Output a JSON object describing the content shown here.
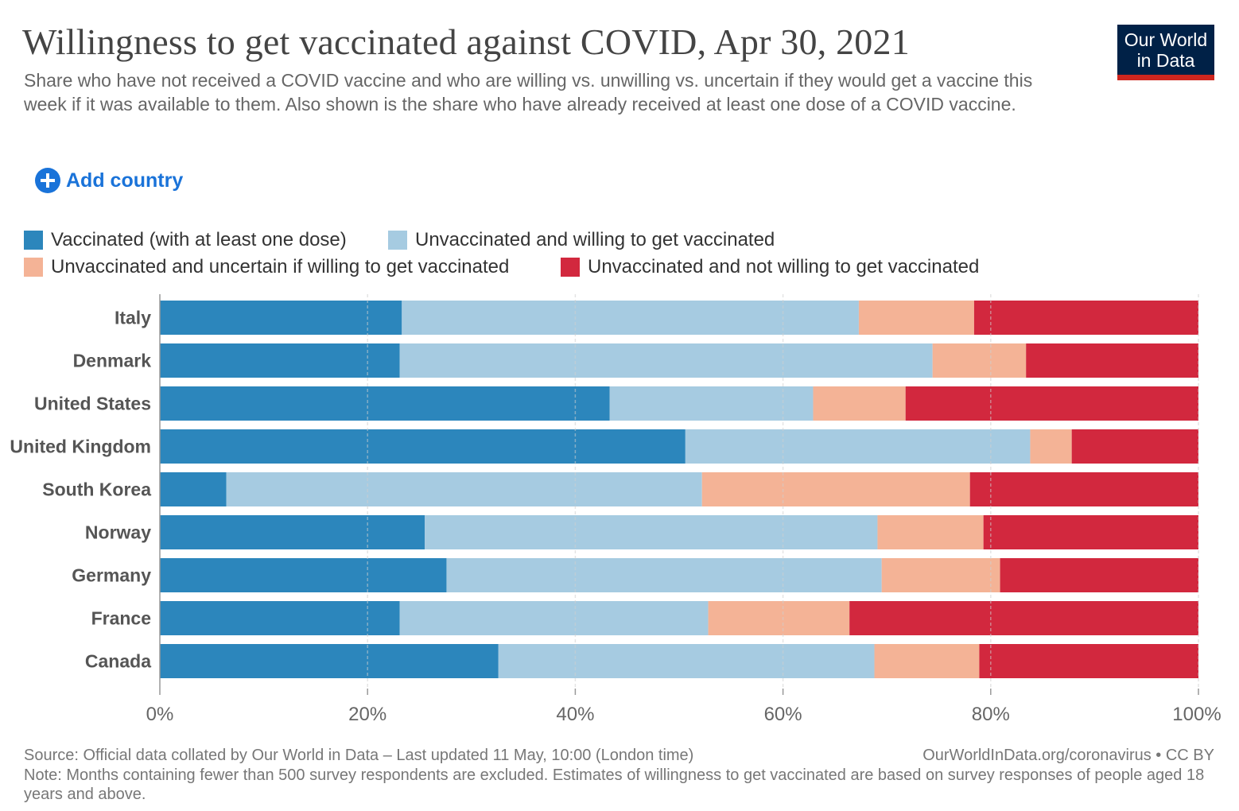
{
  "header": {
    "title": "Willingness to get vaccinated against COVID, Apr 30, 2021",
    "subtitle": "Share who have not received a COVID vaccine and who are willing vs. unwilling vs. uncertain if they would get a vaccine this week if it was available to them. Also shown is the share who have already received at least one dose of a COVID vaccine.",
    "logo_line1": "Our World",
    "logo_line2": "in Data"
  },
  "controls": {
    "add_country_label": "Add country",
    "add_icon": "plus-circle-icon"
  },
  "legend": [
    {
      "label": "Vaccinated (with at least one dose)",
      "color": "#2c86bc"
    },
    {
      "label": "Unvaccinated and willing to get vaccinated",
      "color": "#a6cbe1"
    },
    {
      "label": "Unvaccinated and uncertain if willing to get vaccinated",
      "color": "#f4b396"
    },
    {
      "label": "Unvaccinated and not willing to get vaccinated",
      "color": "#d2283e"
    }
  ],
  "chart_data": {
    "type": "bar",
    "orientation": "horizontal",
    "stacked": true,
    "categories": [
      "Italy",
      "Denmark",
      "United States",
      "United Kingdom",
      "South Korea",
      "Norway",
      "Germany",
      "France",
      "Canada"
    ],
    "series": [
      {
        "name": "Vaccinated (with at least one dose)",
        "color": "#2c86bc",
        "values": [
          23.3,
          23.1,
          43.3,
          50.6,
          6.4,
          25.5,
          27.6,
          23.1,
          32.6
        ]
      },
      {
        "name": "Unvaccinated and willing to get vaccinated",
        "color": "#a6cbe1",
        "values": [
          44.0,
          51.3,
          19.6,
          33.2,
          45.8,
          43.6,
          41.9,
          29.7,
          36.2
        ]
      },
      {
        "name": "Unvaccinated and uncertain if willing to get vaccinated",
        "color": "#f4b396",
        "values": [
          11.1,
          9.0,
          8.9,
          4.0,
          25.8,
          10.2,
          11.4,
          13.6,
          10.1
        ]
      },
      {
        "name": "Unvaccinated and not willing to get vaccinated",
        "color": "#d2283e",
        "values": [
          21.6,
          16.6,
          28.2,
          12.2,
          22.0,
          20.7,
          19.1,
          33.6,
          21.1
        ]
      }
    ],
    "xlim": [
      0,
      100
    ],
    "xticks": [
      "0%",
      "20%",
      "40%",
      "60%",
      "80%",
      "100%"
    ],
    "xtick_values": [
      0,
      20,
      40,
      60,
      80,
      100
    ],
    "grid": true,
    "legend_position": "top-left"
  },
  "footer": {
    "source": "Source: Official data collated by Our World in Data – Last updated 11 May, 10:00 (London time)",
    "license": "OurWorldInData.org/coronavirus • CC BY",
    "note": "Note: Months containing fewer than 500 survey respondents are excluded. Estimates of willingness to get vaccinated are based on survey responses of people aged 18 years and above."
  }
}
